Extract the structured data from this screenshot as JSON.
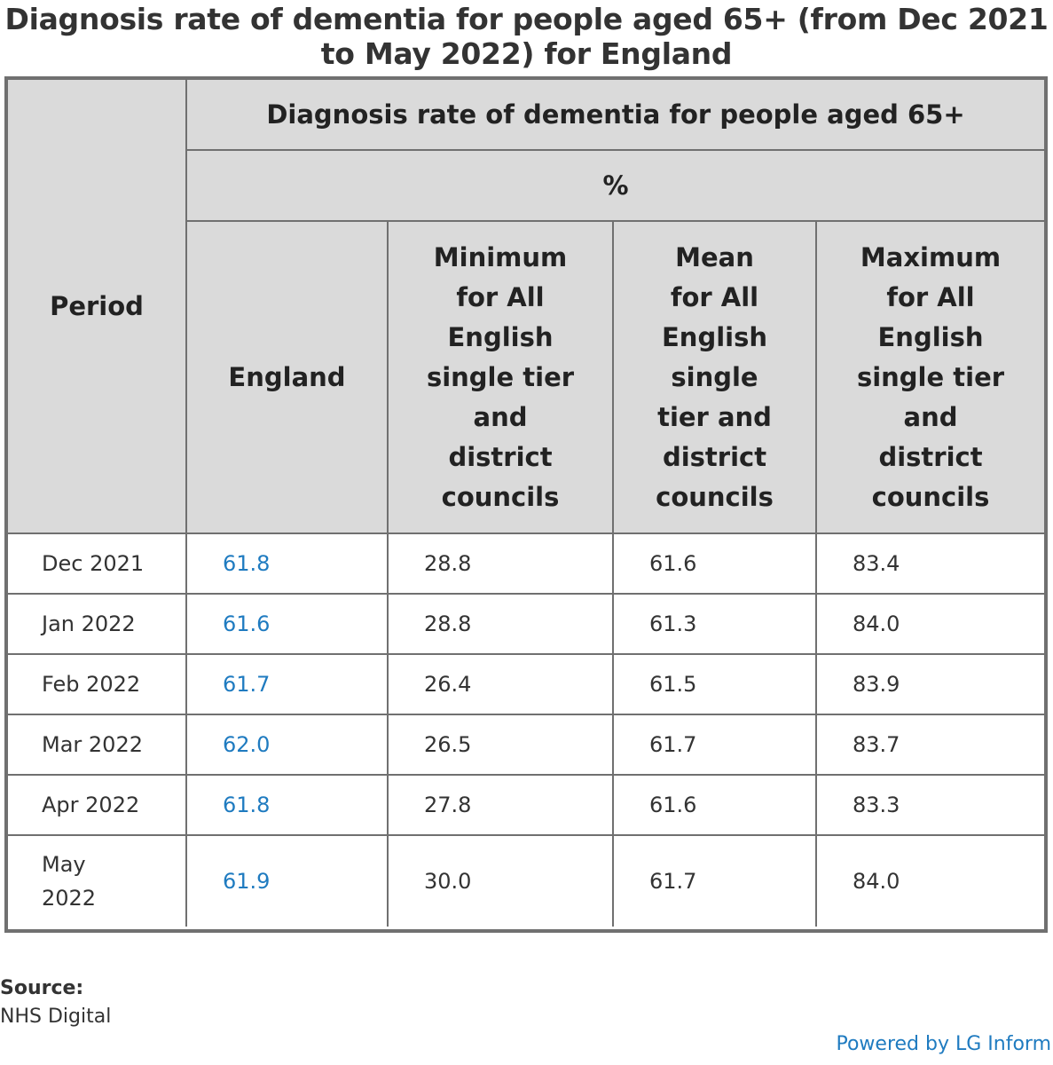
{
  "title": "Diagnosis rate of dementia for people aged 65+ (from Dec 2021 to May 2022) for England",
  "chart_data": {
    "type": "table",
    "title": "Diagnosis rate of dementia for people aged 65+ (from Dec 2021 to May 2022) for England",
    "measure_header": "Diagnosis rate of dementia for people aged 65+",
    "unit_header": "%",
    "period_header": "Period",
    "columns": [
      "England",
      "Minimum for All English single tier and district councils",
      "Mean for All English single tier and district councils",
      "Maximum for All English single tier and district councils"
    ],
    "rows": [
      {
        "period": "Dec 2021",
        "values": [
          "61.8",
          "28.8",
          "61.6",
          "83.4"
        ]
      },
      {
        "period": "Jan 2022",
        "values": [
          "61.6",
          "28.8",
          "61.3",
          "84.0"
        ]
      },
      {
        "period": "Feb 2022",
        "values": [
          "61.7",
          "26.4",
          "61.5",
          "83.9"
        ]
      },
      {
        "period": "Mar 2022",
        "values": [
          "62.0",
          "26.5",
          "61.7",
          "83.7"
        ]
      },
      {
        "period": "Apr 2022",
        "values": [
          "61.8",
          "27.8",
          "61.6",
          "83.3"
        ]
      },
      {
        "period": "May 2022",
        "values": [
          "61.9",
          "30.0",
          "61.7",
          "84.0"
        ]
      }
    ]
  },
  "footer": {
    "source_label": "Source:",
    "source_value": "NHS Digital",
    "powered_by": "Powered by LG Inform"
  },
  "colors": {
    "accent": "#1f7bc0",
    "header_bg": "#dadada",
    "border": "#707070"
  }
}
